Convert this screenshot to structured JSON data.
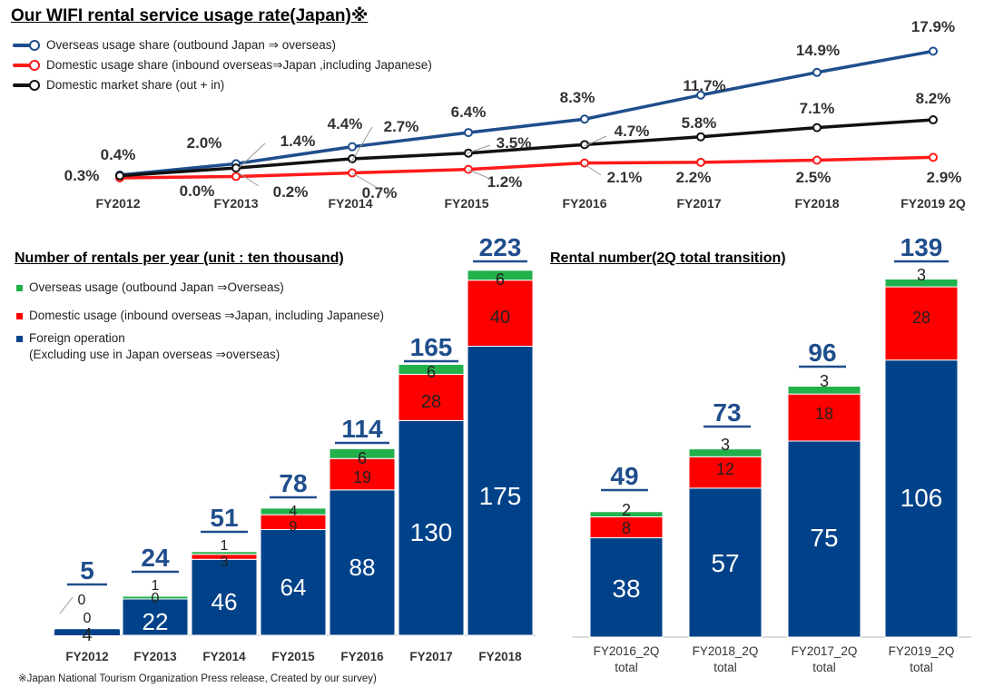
{
  "line_title": "Our WIFI rental service usage rate(Japan)※",
  "bar_title": "Number of rentals per year (unit : ten thousand)",
  "q_title": "Rental number(2Q total transition)",
  "source_note": "※Japan National Tourism Organization Press release, Created by our survey)",
  "colors": {
    "overseas_line": "#1f4e8c",
    "domestic_line": "#ff1a1a",
    "market_line": "#111111",
    "foreign_bar": "#00428a",
    "domestic_bar": "#ff0000",
    "overseas_bar": "#22b04b"
  },
  "chart_data": [
    {
      "type": "line",
      "title": "Our WIFI rental service usage rate(Japan)※",
      "categories": [
        "FY2012",
        "FY2013",
        "FY2014",
        "FY2015",
        "FY2016",
        "FY2017",
        "FY2018",
        "FY2019 2Q"
      ],
      "series": [
        {
          "name": "Overseas usage share (outbound  Japan ⇒  overseas)",
          "values": [
            0.4,
            2.0,
            4.4,
            6.4,
            8.3,
            11.7,
            14.9,
            17.9
          ],
          "labels": [
            "0.4%",
            "2.0%",
            "4.4%",
            "6.4%",
            "8.3%",
            "11.7%",
            "14.9%",
            "17.9%"
          ]
        },
        {
          "name": "Domestic usage share (inbound  overseas⇒Japan ,including Japanese)",
          "values": [
            0.0,
            0.2,
            0.7,
            1.2,
            2.1,
            2.2,
            2.5,
            2.9
          ],
          "labels": [
            "0.0%",
            "0.2%",
            "0.7%",
            "1.2%",
            "2.1%",
            "2.2%",
            "2.5%",
            "2.9%"
          ]
        },
        {
          "name": "Domestic market share (out + in)",
          "values": [
            0.3,
            1.4,
            2.7,
            3.5,
            4.7,
            5.8,
            7.1,
            8.2
          ],
          "labels": [
            "0.3%",
            "1.4%",
            "2.7%",
            "3.5%",
            "4.7%",
            "5.8%",
            "7.1%",
            "8.2%"
          ]
        }
      ],
      "legend": "top-left",
      "grid": false
    },
    {
      "type": "bar",
      "stacked": true,
      "title": "Number of rentals per year (unit : ten thousand)",
      "categories": [
        "FY2012",
        "FY2013",
        "FY2014",
        "FY2015",
        "FY2016",
        "FY2017",
        "FY2018"
      ],
      "series": [
        {
          "name": "Foreign operation\n(Excluding use in Japan overseas ⇒overseas)",
          "legend_line1": "Foreign operation",
          "legend_line2": "(Excluding use in Japan overseas ⇒overseas)",
          "values": [
            4,
            22,
            46,
            64,
            88,
            130,
            175
          ]
        },
        {
          "name": "Domestic usage (inbound overseas ⇒Japan, including Japanese)",
          "values": [
            0,
            0,
            3,
            9,
            19,
            28,
            40
          ]
        },
        {
          "name": "Overseas usage (outbound  Japan ⇒Overseas)",
          "values": [
            0,
            1,
            1,
            4,
            6,
            6,
            6
          ]
        }
      ],
      "totals": [
        5,
        24,
        51,
        78,
        114,
        165,
        223
      ],
      "legend": "top-left"
    },
    {
      "type": "bar",
      "stacked": true,
      "title": "Rental number(2Q total transition)",
      "categories": [
        "FY2016_2Q total",
        "FY2018_2Q total",
        "FY2017_2Q total",
        "FY2019_2Q total"
      ],
      "category_lines": [
        [
          "FY2016_2Q",
          "total"
        ],
        [
          "FY2018_2Q",
          "total"
        ],
        [
          "FY2017_2Q",
          "total"
        ],
        [
          "FY2019_2Q",
          "total"
        ]
      ],
      "series": [
        {
          "name": "Foreign operation",
          "values": [
            38,
            57,
            75,
            106
          ]
        },
        {
          "name": "Domestic usage",
          "values": [
            8,
            12,
            18,
            28
          ]
        },
        {
          "name": "Overseas usage",
          "values": [
            2,
            3,
            3,
            3
          ]
        }
      ],
      "totals": [
        49,
        73,
        96,
        139
      ]
    }
  ]
}
